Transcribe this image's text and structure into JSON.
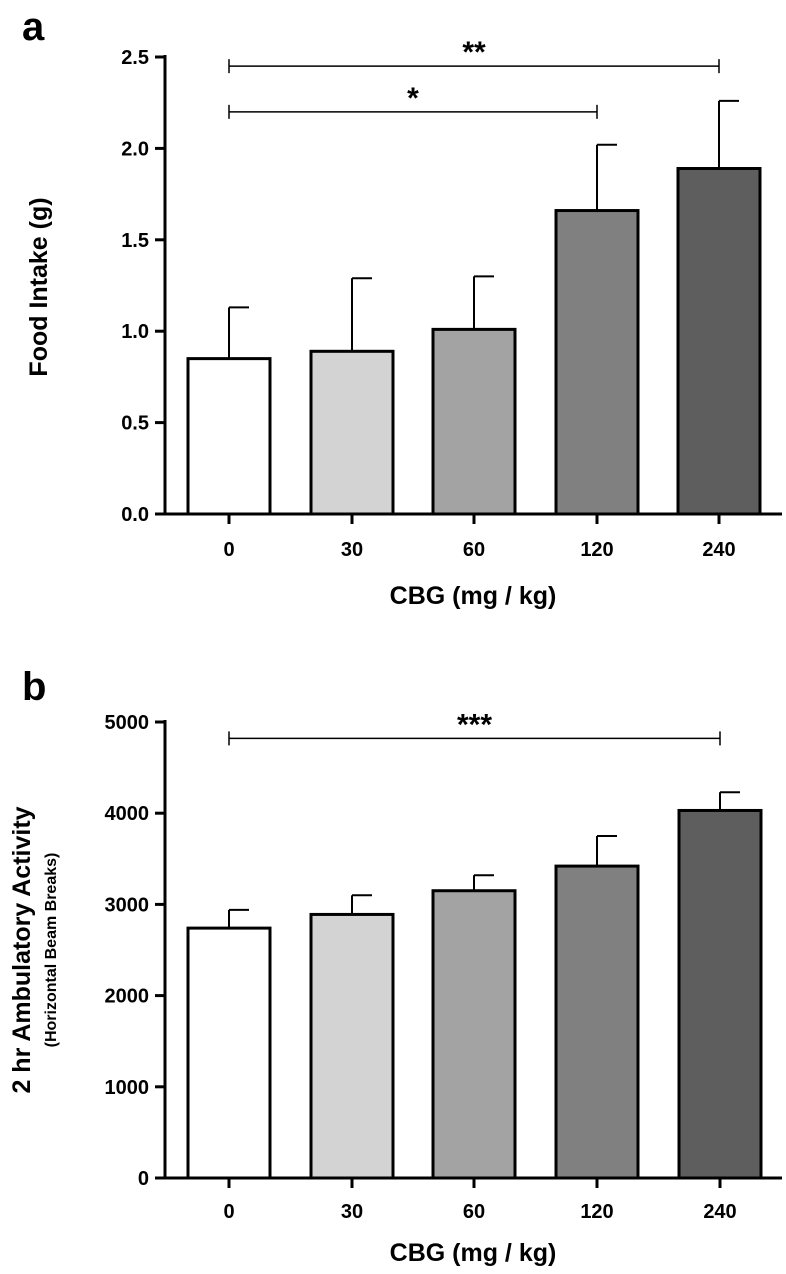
{
  "chart_data": [
    {
      "type": "bar",
      "panel_label": "a",
      "categories": [
        "0",
        "30",
        "60",
        "120",
        "240"
      ],
      "values": [
        0.85,
        0.89,
        1.01,
        1.66,
        1.89
      ],
      "error": [
        0.28,
        0.4,
        0.29,
        0.36,
        0.37
      ],
      "colors": [
        "#ffffff",
        "#d3d3d3",
        "#a3a3a3",
        "#808080",
        "#5e5e5e"
      ],
      "ylim": [
        0,
        2.5
      ],
      "yticks": [
        "0.0",
        "0.5",
        "1.0",
        "1.5",
        "2.0",
        "2.5"
      ],
      "xlabel": "CBG (mg / kg)",
      "ylabel": "Food Intake (g)",
      "grid": false,
      "significance": [
        {
          "from": 0,
          "to": 3,
          "y": 2.2,
          "label": "*"
        },
        {
          "from": 0,
          "to": 4,
          "y": 2.45,
          "label": "**"
        }
      ]
    },
    {
      "type": "bar",
      "panel_label": "b",
      "categories": [
        "0",
        "30",
        "60",
        "120",
        "240"
      ],
      "values": [
        2740,
        2890,
        3150,
        3420,
        4030
      ],
      "error": [
        200,
        210,
        170,
        330,
        200
      ],
      "colors": [
        "#ffffff",
        "#d3d3d3",
        "#a3a3a3",
        "#808080",
        "#5e5e5e"
      ],
      "ylim": [
        0,
        5000
      ],
      "yticks": [
        "0",
        "1000",
        "2000",
        "3000",
        "4000",
        "5000"
      ],
      "xlabel": "CBG (mg / kg)",
      "ylabel": "2 hr Ambulatory Activity",
      "ylabel_sub": "(Horizontal Beam Breaks)",
      "grid": false,
      "significance": [
        {
          "from": 0,
          "to": 4,
          "y": 4820,
          "label": "***"
        }
      ]
    }
  ]
}
